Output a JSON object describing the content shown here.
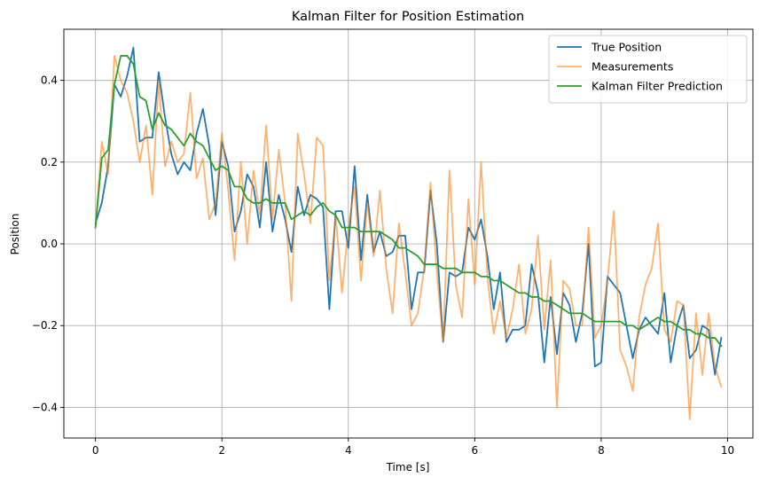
{
  "chart_data": {
    "type": "line",
    "title": "Kalman Filter for Position Estimation",
    "xlabel": "Time [s]",
    "ylabel": "Position",
    "xlim": [
      -0.5,
      10.4
    ],
    "ylim": [
      -0.475,
      0.525
    ],
    "xticks": [
      0,
      2,
      4,
      6,
      8,
      10
    ],
    "yticks": [
      -0.4,
      -0.2,
      0.0,
      0.2,
      0.4
    ],
    "ytick_labels": [
      "−0.4",
      "−0.2",
      "0.0",
      "0.2",
      "0.4"
    ],
    "grid": true,
    "legend_position": "top-right",
    "x": [
      0.0,
      0.1,
      0.2,
      0.3,
      0.4,
      0.5,
      0.6,
      0.7,
      0.8,
      0.9,
      1.0,
      1.1,
      1.2,
      1.3,
      1.4,
      1.5,
      1.6,
      1.7,
      1.8,
      1.9,
      2.0,
      2.1,
      2.2,
      2.3,
      2.4,
      2.5,
      2.6,
      2.7,
      2.8,
      2.9,
      3.0,
      3.1,
      3.2,
      3.3,
      3.4,
      3.5,
      3.6,
      3.7,
      3.8,
      3.9,
      4.0,
      4.1,
      4.2,
      4.3,
      4.4,
      4.5,
      4.6,
      4.7,
      4.8,
      4.9,
      5.0,
      5.1,
      5.2,
      5.3,
      5.4,
      5.5,
      5.6,
      5.7,
      5.8,
      5.9,
      6.0,
      6.1,
      6.2,
      6.3,
      6.4,
      6.5,
      6.6,
      6.7,
      6.8,
      6.9,
      7.0,
      7.1,
      7.2,
      7.3,
      7.4,
      7.5,
      7.6,
      7.7,
      7.8,
      7.9,
      8.0,
      8.1,
      8.2,
      8.3,
      8.4,
      8.5,
      8.6,
      8.7,
      8.8,
      8.9,
      9.0,
      9.1,
      9.2,
      9.3,
      9.4,
      9.5,
      9.6,
      9.7,
      9.8,
      9.9
    ],
    "series": [
      {
        "name": "True Position",
        "color": "#1f77b4",
        "width": 1.8,
        "opacity": 1,
        "values": [
          0.05,
          0.1,
          0.19,
          0.39,
          0.36,
          0.41,
          0.48,
          0.25,
          0.26,
          0.26,
          0.42,
          0.31,
          0.22,
          0.17,
          0.2,
          0.18,
          0.27,
          0.33,
          0.24,
          0.07,
          0.25,
          0.19,
          0.03,
          0.08,
          0.17,
          0.14,
          0.04,
          0.2,
          0.03,
          0.12,
          0.06,
          -0.02,
          0.14,
          0.07,
          0.12,
          0.11,
          0.09,
          -0.16,
          0.08,
          0.08,
          -0.01,
          0.19,
          -0.04,
          0.12,
          -0.02,
          0.03,
          -0.03,
          -0.02,
          0.02,
          0.02,
          -0.16,
          -0.07,
          -0.07,
          0.13,
          0.0,
          -0.24,
          -0.07,
          -0.08,
          -0.07,
          0.04,
          0.01,
          0.06,
          -0.03,
          -0.16,
          -0.07,
          -0.24,
          -0.21,
          -0.21,
          -0.2,
          -0.05,
          -0.12,
          -0.29,
          -0.13,
          -0.27,
          -0.12,
          -0.15,
          -0.24,
          -0.17,
          0.0,
          -0.3,
          -0.29,
          -0.08,
          -0.1,
          -0.12,
          -0.2,
          -0.28,
          -0.21,
          -0.18,
          -0.2,
          -0.22,
          -0.12,
          -0.29,
          -0.2,
          -0.15,
          -0.28,
          -0.26,
          -0.2,
          -0.21,
          -0.32,
          -0.23
        ]
      },
      {
        "name": "Measurements",
        "color": "#ff7f0e",
        "width": 1.8,
        "opacity": 0.6,
        "values": [
          0.04,
          0.25,
          0.17,
          0.46,
          0.4,
          0.37,
          0.3,
          0.2,
          0.29,
          0.12,
          0.4,
          0.19,
          0.25,
          0.2,
          0.22,
          0.37,
          0.16,
          0.21,
          0.06,
          0.1,
          0.27,
          0.13,
          -0.04,
          0.2,
          0.0,
          0.18,
          0.07,
          0.29,
          0.06,
          0.23,
          0.1,
          -0.14,
          0.27,
          0.17,
          0.05,
          0.26,
          0.24,
          -0.09,
          0.07,
          -0.12,
          0.04,
          0.14,
          -0.09,
          0.1,
          -0.03,
          0.13,
          -0.06,
          -0.17,
          0.05,
          -0.07,
          -0.2,
          -0.17,
          -0.06,
          0.15,
          -0.07,
          -0.24,
          0.18,
          -0.1,
          -0.18,
          0.11,
          -0.1,
          0.2,
          -0.08,
          -0.22,
          -0.14,
          -0.23,
          -0.16,
          -0.05,
          -0.22,
          -0.16,
          0.02,
          -0.21,
          -0.04,
          -0.4,
          -0.09,
          -0.11,
          -0.2,
          -0.2,
          0.04,
          -0.23,
          -0.2,
          -0.09,
          0.08,
          -0.26,
          -0.3,
          -0.36,
          -0.18,
          -0.1,
          -0.06,
          0.05,
          -0.21,
          -0.24,
          -0.14,
          -0.15,
          -0.43,
          -0.17,
          -0.32,
          -0.17,
          -0.3,
          -0.35
        ]
      },
      {
        "name": "Kalman Filter Prediction",
        "color": "#2ca02c",
        "width": 1.8,
        "opacity": 1,
        "values": [
          0.04,
          0.21,
          0.23,
          0.39,
          0.46,
          0.46,
          0.44,
          0.36,
          0.35,
          0.28,
          0.32,
          0.29,
          0.28,
          0.26,
          0.24,
          0.27,
          0.25,
          0.24,
          0.21,
          0.18,
          0.19,
          0.18,
          0.14,
          0.14,
          0.11,
          0.1,
          0.1,
          0.11,
          0.1,
          0.1,
          0.1,
          0.06,
          0.07,
          0.08,
          0.07,
          0.09,
          0.1,
          0.08,
          0.07,
          0.04,
          0.04,
          0.04,
          0.03,
          0.03,
          0.03,
          0.03,
          0.02,
          0.01,
          -0.01,
          -0.01,
          -0.02,
          -0.03,
          -0.05,
          -0.05,
          -0.05,
          -0.06,
          -0.06,
          -0.06,
          -0.07,
          -0.07,
          -0.07,
          -0.08,
          -0.08,
          -0.09,
          -0.09,
          -0.1,
          -0.11,
          -0.12,
          -0.12,
          -0.13,
          -0.13,
          -0.14,
          -0.14,
          -0.15,
          -0.16,
          -0.17,
          -0.17,
          -0.17,
          -0.18,
          -0.19,
          -0.19,
          -0.19,
          -0.19,
          -0.19,
          -0.2,
          -0.2,
          -0.21,
          -0.2,
          -0.19,
          -0.18,
          -0.19,
          -0.19,
          -0.2,
          -0.21,
          -0.21,
          -0.22,
          -0.22,
          -0.23,
          -0.23,
          -0.25
        ]
      }
    ]
  }
}
